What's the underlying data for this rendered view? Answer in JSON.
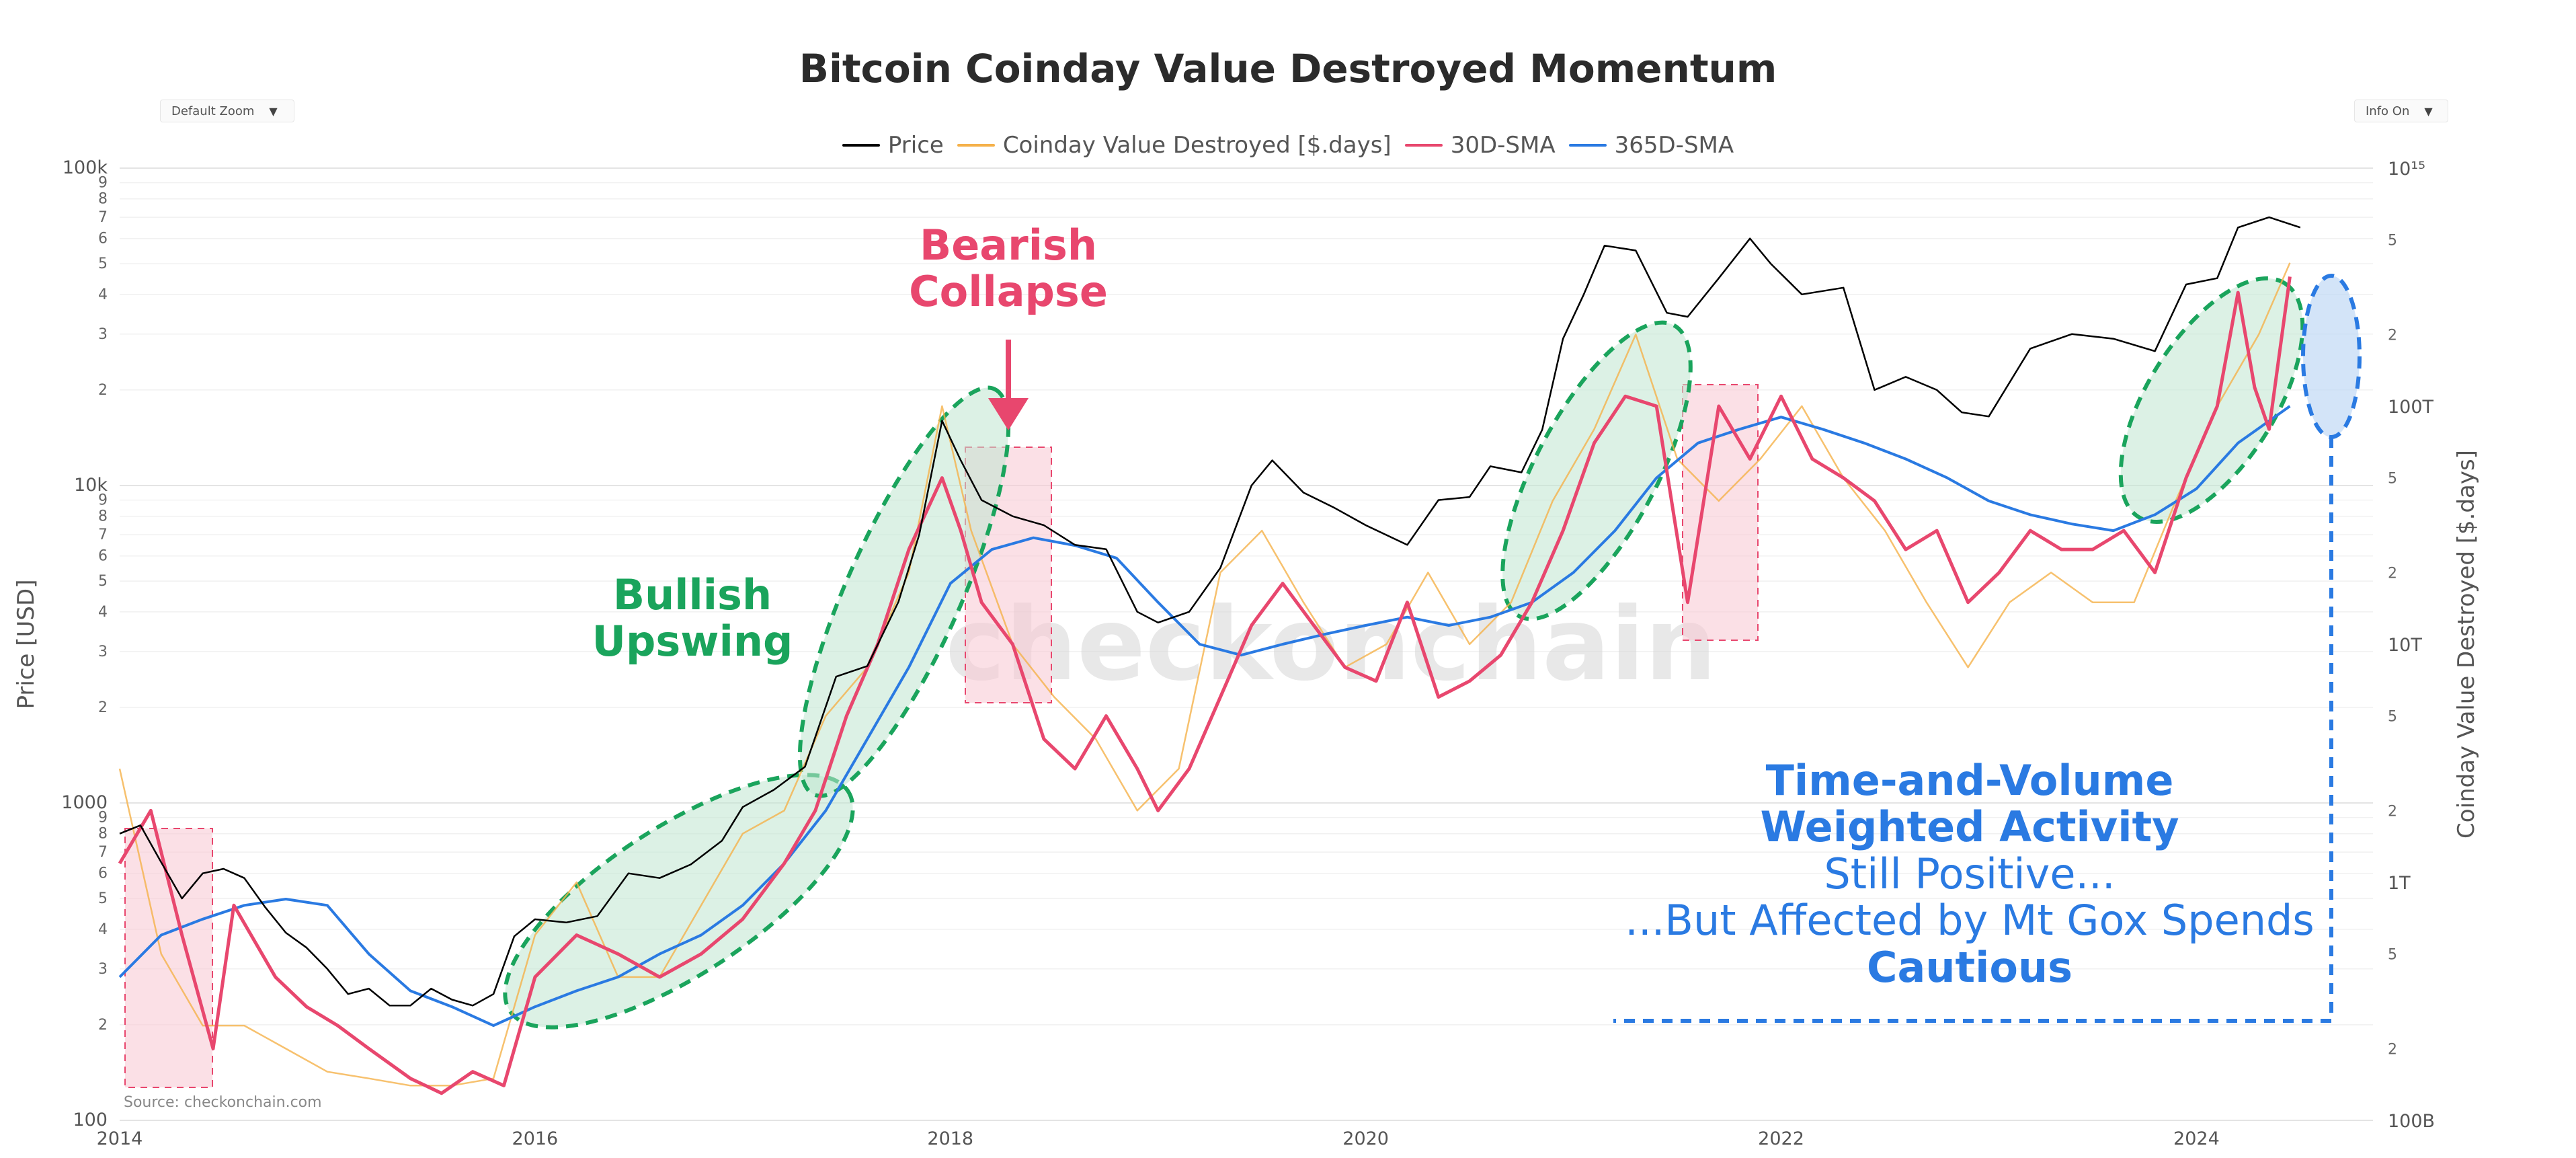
{
  "title": "Bitcoin Coinday Value Destroyed Momentum",
  "controls": {
    "zoom_label": "Default Zoom",
    "info_label": "Info On"
  },
  "legend": [
    {
      "name": "Price",
      "color": "#000000"
    },
    {
      "name": "Coinday Value Destroyed [$.days]",
      "color": "#f5b14a"
    },
    {
      "name": "30D-SMA",
      "color": "#e8476e"
    },
    {
      "name": "365D-SMA",
      "color": "#2a7ae2"
    }
  ],
  "source": "Source: checkonchain.com",
  "watermark": "checkonchain",
  "annotations": {
    "bearish": [
      "Bearish",
      "Collapse"
    ],
    "bullish": [
      "Bullish",
      "Upswing"
    ],
    "tvwa_bold": [
      "Time-and-Volume",
      "Weighted Activity"
    ],
    "tvwa_lines": [
      "Still Positive...",
      "...But Affected by Mt Gox Spends"
    ],
    "cautious": "Cautious"
  },
  "chart_data": {
    "type": "line",
    "x_ticks": [
      "2014",
      "2016",
      "2018",
      "2020",
      "2022",
      "2024"
    ],
    "xlim": [
      2014.0,
      2024.85
    ],
    "y_left": {
      "label": "Price [USD]",
      "scale": "log",
      "ylim": [
        100,
        100000
      ],
      "major_ticks": [
        {
          "v": 100,
          "t": "100"
        },
        {
          "v": 1000,
          "t": "1000"
        },
        {
          "v": 10000,
          "t": "10k"
        },
        {
          "v": 100000,
          "t": "100k"
        }
      ],
      "minor_ticks": [
        "2",
        "3",
        "4",
        "5",
        "6",
        "7",
        "8",
        "9"
      ]
    },
    "y_right": {
      "label": "Coinday Value Destroyed [$.days]",
      "scale": "log",
      "ylim": [
        100000000000.0,
        1000000000000000.0
      ],
      "major_ticks": [
        {
          "v": 100000000000.0,
          "t": "100B"
        },
        {
          "v": 1000000000000.0,
          "t": "1T"
        },
        {
          "v": 10000000000000.0,
          "t": "10T"
        },
        {
          "v": 100000000000000.0,
          "t": "100T"
        },
        {
          "v": 1000000000000000.0,
          "t": "10¹⁵"
        }
      ],
      "minor_ticks": [
        {
          "v": 2,
          "t": "2"
        },
        {
          "v": 5,
          "t": "5"
        }
      ]
    },
    "series": [
      {
        "name": "Price",
        "axis": "left",
        "color": "#000000",
        "x": [
          2014.0,
          2014.1,
          2014.2,
          2014.3,
          2014.4,
          2014.5,
          2014.6,
          2014.7,
          2014.8,
          2014.9,
          2015.0,
          2015.1,
          2015.2,
          2015.3,
          2015.4,
          2015.5,
          2015.6,
          2015.7,
          2015.8,
          2015.9,
          2016.0,
          2016.15,
          2016.3,
          2016.45,
          2016.6,
          2016.75,
          2016.9,
          2017.0,
          2017.15,
          2017.3,
          2017.45,
          2017.6,
          2017.75,
          2017.85,
          2017.96,
          2018.05,
          2018.15,
          2018.3,
          2018.45,
          2018.6,
          2018.75,
          2018.9,
          2019.0,
          2019.15,
          2019.3,
          2019.45,
          2019.55,
          2019.7,
          2019.85,
          2020.0,
          2020.2,
          2020.35,
          2020.5,
          2020.6,
          2020.75,
          2020.85,
          2020.95,
          2021.05,
          2021.15,
          2021.3,
          2021.45,
          2021.55,
          2021.7,
          2021.85,
          2021.95,
          2022.1,
          2022.3,
          2022.45,
          2022.6,
          2022.75,
          2022.87,
          2023.0,
          2023.2,
          2023.4,
          2023.6,
          2023.8,
          2023.95,
          2024.1,
          2024.2,
          2024.35,
          2024.5
        ],
        "y": [
          800,
          850,
          650,
          500,
          600,
          620,
          580,
          470,
          390,
          350,
          300,
          250,
          260,
          230,
          230,
          260,
          240,
          230,
          250,
          380,
          430,
          420,
          440,
          600,
          580,
          640,
          760,
          970,
          1100,
          1300,
          2500,
          2700,
          4300,
          7000,
          16000,
          12000,
          9000,
          8000,
          7500,
          6500,
          6300,
          4000,
          3700,
          4000,
          5500,
          10000,
          12000,
          9500,
          8500,
          7500,
          6500,
          9000,
          9200,
          11500,
          11000,
          15000,
          29000,
          40000,
          57000,
          55000,
          35000,
          34000,
          45000,
          60000,
          50000,
          40000,
          42000,
          20000,
          22000,
          20000,
          17000,
          16500,
          27000,
          30000,
          29000,
          26500,
          43000,
          45000,
          65000,
          70000,
          65000
        ]
      },
      {
        "name": "Coinday Value Destroyed [$.days]",
        "axis": "right",
        "color": "#f5b14a",
        "x": [
          2014.0,
          2014.2,
          2014.4,
          2014.6,
          2014.8,
          2015.0,
          2015.2,
          2015.4,
          2015.6,
          2015.8,
          2016.0,
          2016.2,
          2016.4,
          2016.6,
          2016.8,
          2017.0,
          2017.2,
          2017.4,
          2017.6,
          2017.8,
          2017.96,
          2018.1,
          2018.3,
          2018.5,
          2018.7,
          2018.9,
          2019.1,
          2019.3,
          2019.5,
          2019.7,
          2019.9,
          2020.1,
          2020.3,
          2020.5,
          2020.7,
          2020.9,
          2021.1,
          2021.3,
          2021.5,
          2021.7,
          2021.9,
          2022.1,
          2022.3,
          2022.5,
          2022.7,
          2022.9,
          2023.1,
          2023.3,
          2023.5,
          2023.7,
          2023.9,
          2024.1,
          2024.3,
          2024.45
        ],
        "y": [
          3000000000000.0,
          500000000000.0,
          250000000000.0,
          250000000000.0,
          200000000000.0,
          160000000000.0,
          150000000000.0,
          140000000000.0,
          140000000000.0,
          150000000000.0,
          600000000000.0,
          1000000000000.0,
          400000000000.0,
          400000000000.0,
          800000000000.0,
          1600000000000.0,
          2000000000000.0,
          5000000000000.0,
          8000000000000.0,
          20000000000000.0,
          100000000000000.0,
          30000000000000.0,
          10000000000000.0,
          6000000000000.0,
          4000000000000.0,
          2000000000000.0,
          3000000000000.0,
          20000000000000.0,
          30000000000000.0,
          15000000000000.0,
          8000000000000.0,
          10000000000000.0,
          20000000000000.0,
          10000000000000.0,
          15000000000000.0,
          40000000000000.0,
          80000000000000.0,
          200000000000000.0,
          60000000000000.0,
          40000000000000.0,
          60000000000000.0,
          100000000000000.0,
          50000000000000.0,
          30000000000000.0,
          15000000000000.0,
          8000000000000.0,
          15000000000000.0,
          20000000000000.0,
          15000000000000.0,
          15000000000000.0,
          40000000000000.0,
          100000000000000.0,
          200000000000000.0,
          400000000000000.0
        ]
      },
      {
        "name": "30D-SMA",
        "axis": "right",
        "color": "#e8476e",
        "x": [
          2014.0,
          2014.15,
          2014.3,
          2014.45,
          2014.55,
          2014.75,
          2014.9,
          2015.05,
          2015.2,
          2015.4,
          2015.55,
          2015.7,
          2015.85,
          2016.0,
          2016.2,
          2016.4,
          2016.6,
          2016.8,
          2017.0,
          2017.2,
          2017.35,
          2017.5,
          2017.65,
          2017.8,
          2017.96,
          2018.05,
          2018.15,
          2018.3,
          2018.45,
          2018.6,
          2018.75,
          2018.9,
          2019.0,
          2019.15,
          2019.3,
          2019.45,
          2019.6,
          2019.75,
          2019.9,
          2020.05,
          2020.2,
          2020.35,
          2020.5,
          2020.65,
          2020.8,
          2020.95,
          2021.1,
          2021.25,
          2021.4,
          2021.55,
          2021.7,
          2021.85,
          2022.0,
          2022.15,
          2022.3,
          2022.45,
          2022.6,
          2022.75,
          2022.9,
          2023.05,
          2023.2,
          2023.35,
          2023.5,
          2023.65,
          2023.8,
          2023.95,
          2024.1,
          2024.2,
          2024.28,
          2024.35,
          2024.45
        ],
        "y": [
          1200000000000.0,
          2000000000000.0,
          600000000000.0,
          200000000000.0,
          800000000000.0,
          400000000000.0,
          300000000000.0,
          250000000000.0,
          200000000000.0,
          150000000000.0,
          130000000000.0,
          160000000000.0,
          140000000000.0,
          400000000000.0,
          600000000000.0,
          500000000000.0,
          400000000000.0,
          500000000000.0,
          700000000000.0,
          1200000000000.0,
          2000000000000.0,
          5000000000000.0,
          10000000000000.0,
          25000000000000.0,
          50000000000000.0,
          30000000000000.0,
          15000000000000.0,
          10000000000000.0,
          4000000000000.0,
          3000000000000.0,
          5000000000000.0,
          3000000000000.0,
          2000000000000.0,
          3000000000000.0,
          6000000000000.0,
          12000000000000.0,
          18000000000000.0,
          12000000000000.0,
          8000000000000.0,
          7000000000000.0,
          15000000000000.0,
          6000000000000.0,
          7000000000000.0,
          9000000000000.0,
          15000000000000.0,
          30000000000000.0,
          70000000000000.0,
          110000000000000.0,
          100000000000000.0,
          15000000000000.0,
          100000000000000.0,
          60000000000000.0,
          110000000000000.0,
          60000000000000.0,
          50000000000000.0,
          40000000000000.0,
          25000000000000.0,
          30000000000000.0,
          15000000000000.0,
          20000000000000.0,
          30000000000000.0,
          25000000000000.0,
          25000000000000.0,
          30000000000000.0,
          20000000000000.0,
          50000000000000.0,
          100000000000000.0,
          300000000000000.0,
          120000000000000.0,
          80000000000000.0,
          350000000000000.0
        ]
      },
      {
        "name": "365D-SMA",
        "axis": "right",
        "color": "#2a7ae2",
        "x": [
          2014.0,
          2014.2,
          2014.4,
          2014.6,
          2014.8,
          2015.0,
          2015.2,
          2015.4,
          2015.6,
          2015.8,
          2016.0,
          2016.2,
          2016.4,
          2016.6,
          2016.8,
          2017.0,
          2017.2,
          2017.4,
          2017.6,
          2017.8,
          2018.0,
          2018.2,
          2018.4,
          2018.6,
          2018.8,
          2019.0,
          2019.2,
          2019.4,
          2019.6,
          2019.8,
          2020.0,
          2020.2,
          2020.4,
          2020.6,
          2020.8,
          2021.0,
          2021.2,
          2021.4,
          2021.6,
          2021.8,
          2022.0,
          2022.2,
          2022.4,
          2022.6,
          2022.8,
          2023.0,
          2023.2,
          2023.4,
          2023.6,
          2023.8,
          2024.0,
          2024.2,
          2024.45
        ],
        "y": [
          400000000000.0,
          600000000000.0,
          700000000000.0,
          800000000000.0,
          850000000000.0,
          800000000000.0,
          500000000000.0,
          350000000000.0,
          300000000000.0,
          250000000000.0,
          300000000000.0,
          350000000000.0,
          400000000000.0,
          500000000000.0,
          600000000000.0,
          800000000000.0,
          1200000000000.0,
          2000000000000.0,
          4000000000000.0,
          8000000000000.0,
          18000000000000.0,
          25000000000000.0,
          28000000000000.0,
          26000000000000.0,
          23000000000000.0,
          15000000000000.0,
          10000000000000.0,
          9000000000000.0,
          10000000000000.0,
          11000000000000.0,
          12000000000000.0,
          13000000000000.0,
          12000000000000.0,
          13000000000000.0,
          15000000000000.0,
          20000000000000.0,
          30000000000000.0,
          50000000000000.0,
          70000000000000.0,
          80000000000000.0,
          90000000000000.0,
          80000000000000.0,
          70000000000000.0,
          60000000000000.0,
          50000000000000.0,
          40000000000000.0,
          35000000000000.0,
          32000000000000.0,
          30000000000000.0,
          35000000000000.0,
          45000000000000.0,
          70000000000000.0,
          100000000000000.0
        ]
      }
    ]
  }
}
